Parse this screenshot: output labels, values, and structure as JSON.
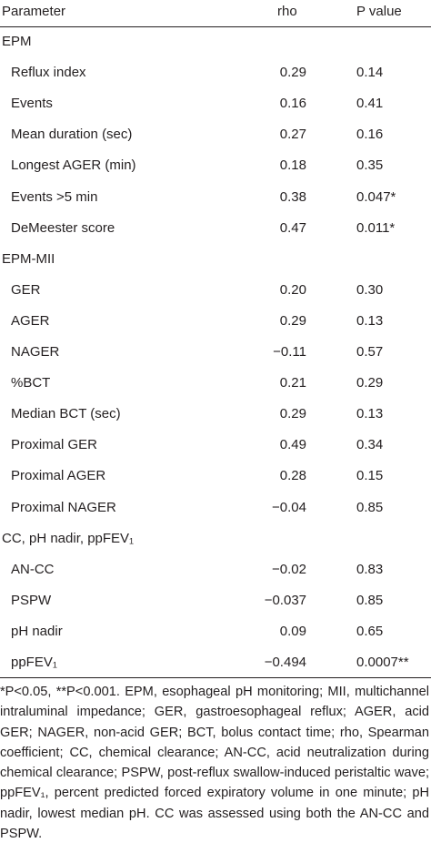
{
  "table": {
    "header": [
      "Parameter",
      "rho",
      "P value"
    ],
    "rows": [
      [
        "EPM"
      ],
      [
        "Reflux index",
        "0.29",
        "0.14"
      ],
      [
        "Events",
        "0.16",
        "0.41"
      ],
      [
        "Mean duration (sec)",
        "0.27",
        "0.16"
      ],
      [
        "Longest AGER (min)",
        "0.18",
        "0.35"
      ],
      [
        "Events >5 min",
        "0.38",
        "0.047*"
      ],
      [
        "DeMeester score",
        "0.47",
        "0.011*"
      ],
      [
        "EPM-MII"
      ],
      [
        "GER",
        "0.20",
        "0.30"
      ],
      [
        "AGER",
        "0.29",
        "0.13"
      ],
      [
        "NAGER",
        "−0.11",
        "0.57"
      ],
      [
        "%BCT",
        "0.21",
        "0.29"
      ],
      [
        "Median BCT (sec)",
        "0.29",
        "0.13"
      ],
      [
        "Proximal GER",
        "0.49",
        "0.34"
      ],
      [
        "Proximal AGER",
        "0.28",
        "0.15"
      ],
      [
        "Proximal NAGER",
        "−0.04",
        "0.85"
      ],
      [
        "CC, pH nadir, ppFEV₁"
      ],
      [
        "AN-CC",
        "−0.02",
        "0.83"
      ],
      [
        "PSPW",
        "−0.037",
        "0.85"
      ],
      [
        "pH nadir",
        "0.09",
        "0.65"
      ],
      [
        "ppFEV₁",
        "−0.494",
        "0.0007**"
      ]
    ],
    "footnote": "*P<0.05, **P<0.001. EPM, esophageal pH monitoring; MII, multichannel intraluminal impedance; GER, gastroesophageal reflux; AGER, acid GER; NAGER, non-acid GER; BCT, bolus contact time; rho, Spearman coefficient; CC, chemical clearance; AN-CC, acid neutralization during chemical clearance; PSPW, post-reflux swallow-induced peristaltic wave; ppFEV₁, percent predicted forced expiratory volume in one minute; pH nadir, lowest median pH. CC was assessed using both the AN-CC and PSPW."
  }
}
